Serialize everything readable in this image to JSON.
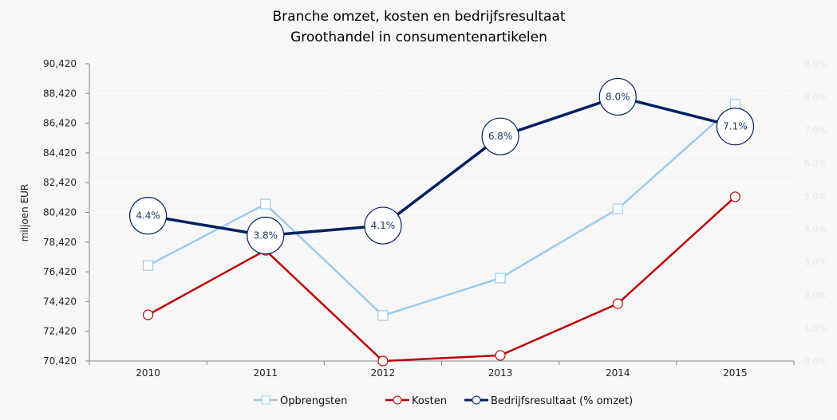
{
  "chart_data": {
    "type": "line",
    "title": [
      "Branche omzet, kosten en bedrijfsresultaat",
      "Groothandel in consumentenartikelen"
    ],
    "ylabel": "miljoen EUR",
    "xlabel": "",
    "categories": [
      "2010",
      "2011",
      "2012",
      "2013",
      "2014",
      "2015"
    ],
    "ylim": [
      70420,
      90420
    ],
    "yticks": [
      "70,420",
      "72,420",
      "74,420",
      "76,420",
      "78,420",
      "80,420",
      "82,420",
      "84,420",
      "86,420",
      "88,420",
      "90,420"
    ],
    "y2lim": [
      0,
      9
    ],
    "y2ticks": [
      "0.0%",
      "1.0%",
      "2.0%",
      "3.0%",
      "4.0%",
      "5.0%",
      "6.0%",
      "7.0%",
      "8.0%",
      "9.0%"
    ],
    "grid": true,
    "legend_position": "bottom",
    "series": [
      {
        "name": "Opbrengsten",
        "axis": "left",
        "color": "#9dcbea",
        "marker": "square",
        "values": [
          76850,
          80980,
          73480,
          76000,
          80660,
          87690
        ]
      },
      {
        "name": "Kosten",
        "axis": "left",
        "color": "#c00000",
        "marker": "circle",
        "values": [
          73530,
          77870,
          70420,
          70800,
          74280,
          81470
        ]
      },
      {
        "name": "Bedrijfsresultaat (% omzet)",
        "axis": "right",
        "color": "#002060",
        "marker": "circle",
        "values": [
          4.4,
          3.8,
          4.1,
          6.8,
          8.0,
          7.1
        ],
        "labels": [
          "4.4%",
          "3.8%",
          "4.1%",
          "6.8%",
          "8.0%",
          "7.1%"
        ]
      }
    ]
  }
}
